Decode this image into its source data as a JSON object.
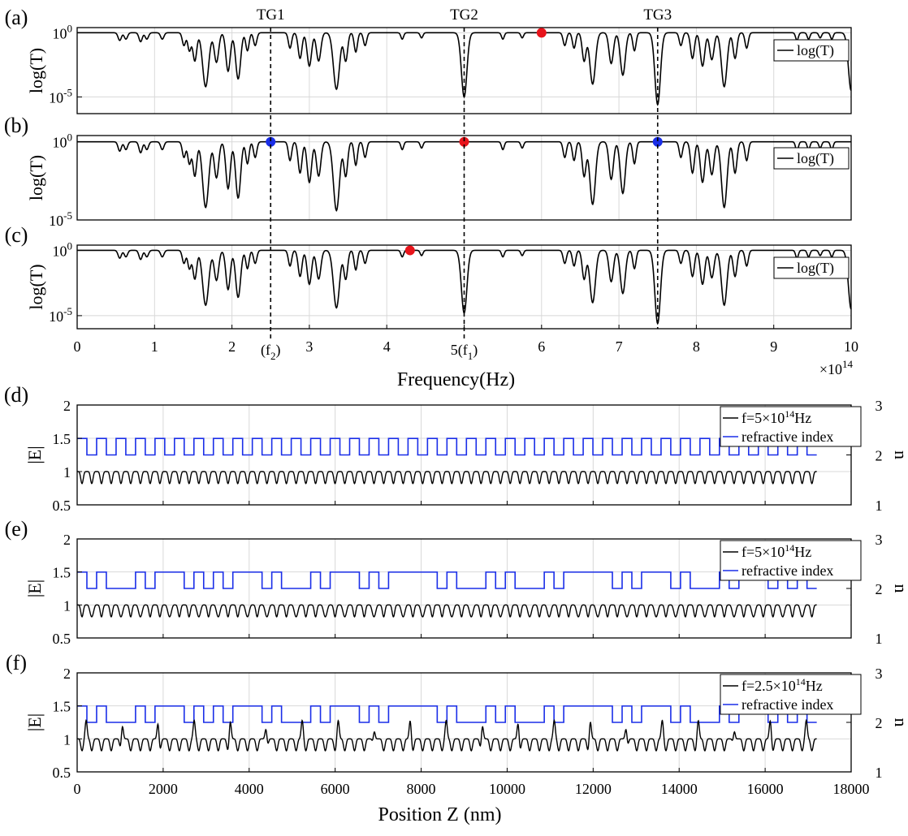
{
  "chart_data": [
    {
      "panel": "(a)",
      "type": "line",
      "yscale": "log",
      "xlim": [
        0,
        10
      ],
      "ylim_exponent": [
        -6.3,
        0.4
      ],
      "ytick_labels": [
        {
          "base": "10",
          "exp": "0",
          "value": 0
        },
        {
          "base": "10",
          "exp": "-5",
          "value": -5
        }
      ],
      "ylabel": "log(T)",
      "legend": [
        "log(T)"
      ],
      "legend_position": "right",
      "grid": true,
      "transmission_gaps": [
        {
          "label": "TG1",
          "x": 2.5
        },
        {
          "label": "TG2",
          "x": 5.0
        },
        {
          "label": "TG3",
          "x": 7.5
        }
      ],
      "deep_dips": [
        {
          "x": 5.0,
          "log_min": -5.0
        },
        {
          "x": 7.5,
          "log_min": -5.6
        },
        {
          "x": 10.0,
          "log_min": -4.5
        }
      ],
      "markers": [
        {
          "x": 6.0,
          "log": 0,
          "color": "#e8141b"
        }
      ]
    },
    {
      "panel": "(b)",
      "type": "line",
      "yscale": "log",
      "xlim": [
        0,
        10
      ],
      "ylim_exponent": [
        -5.0,
        0.4
      ],
      "ytick_labels": [
        {
          "base": "10",
          "exp": "0",
          "value": 0
        },
        {
          "base": "10",
          "exp": "-5",
          "value": -5
        }
      ],
      "ylabel": "log(T)",
      "legend": [
        "log(T)"
      ],
      "legend_position": "right",
      "grid": true,
      "markers": [
        {
          "x": 2.5,
          "log": 0,
          "color": "#1a2ee8"
        },
        {
          "x": 5.0,
          "log": 0,
          "color": "#e8141b"
        },
        {
          "x": 7.5,
          "log": 0,
          "color": "#1a2ee8"
        }
      ]
    },
    {
      "panel": "(c)",
      "type": "line",
      "yscale": "log",
      "xlim": [
        0,
        10
      ],
      "ylim_exponent": [
        -6.0,
        0.4
      ],
      "ytick_labels": [
        {
          "base": "10",
          "exp": "0",
          "value": 0
        },
        {
          "base": "10",
          "exp": "-5",
          "value": -5
        }
      ],
      "ylabel": "log(T)",
      "legend": [
        "log(T)"
      ],
      "legend_position": "right",
      "grid": true,
      "deep_dips": [
        {
          "x": 5.0,
          "log_min": -4.8
        },
        {
          "x": 7.5,
          "log_min": -5.6
        },
        {
          "x": 10.0,
          "log_min": -4.5
        }
      ],
      "markers": [
        {
          "x": 4.3,
          "log": 0,
          "color": "#e8141b"
        }
      ],
      "xticks": [
        0,
        1,
        2,
        3,
        4,
        5,
        6,
        7,
        8,
        9,
        10
      ],
      "xtick_labels": [
        "0",
        "1",
        "2",
        "3",
        "4",
        "5",
        "6",
        "7",
        "8",
        "9",
        "10"
      ],
      "freq_annotations": [
        {
          "x": 2.5,
          "prefix": "(f",
          "sub": "2",
          "suffix": ")"
        },
        {
          "x": 5.0,
          "prefix": "5(f",
          "sub": "1",
          "suffix": ")"
        }
      ],
      "xlabel": "Frequency(Hz)",
      "x_multiplier": {
        "prefix": "×10",
        "exp": "14"
      }
    },
    {
      "panel": "(d)",
      "type": "line",
      "xlim": [
        0,
        18000
      ],
      "ylim": [
        0.5,
        2
      ],
      "yticks": [
        0.5,
        1,
        1.5,
        2
      ],
      "ytick_labels": [
        "0.5",
        "1",
        "1.5",
        "2"
      ],
      "y2lim": [
        1,
        3
      ],
      "y2ticks": [
        1,
        2,
        3
      ],
      "y2tick_labels": [
        "1",
        "2",
        "3"
      ],
      "ylabel": "|E|",
      "y2label": "n",
      "structure_end_nm": 17200,
      "layer_count": 76,
      "n_high": 2.33,
      "n_low": 2.0,
      "field_high": 1.0,
      "field_low": 0.82,
      "legend": [
        {
          "pre": "f=5×10",
          "sup": "14",
          "post": "Hz",
          "color": "#000000"
        },
        {
          "label": "refractive index",
          "color": "#1a2ee8"
        }
      ],
      "legend_position": "right",
      "grid": true
    },
    {
      "panel": "(e)",
      "type": "line",
      "xlim": [
        0,
        18000
      ],
      "ylim": [
        0.5,
        2
      ],
      "yticks": [
        0.5,
        1,
        1.5,
        2
      ],
      "ytick_labels": [
        "0.5",
        "1",
        "1.5",
        "2"
      ],
      "y2lim": [
        1,
        3
      ],
      "y2ticks": [
        1,
        2,
        3
      ],
      "y2tick_labels": [
        "1",
        "2",
        "3"
      ],
      "ylabel": "|E|",
      "y2label": "n",
      "structure_end_nm": 17200,
      "layer_count": 76,
      "n_high": 2.33,
      "n_low": 2.0,
      "field_high": 1.0,
      "field_low": 0.82,
      "legend": [
        {
          "pre": "f=5×10",
          "sup": "14",
          "post": "Hz",
          "color": "#000000"
        },
        {
          "label": "refractive index",
          "color": "#1a2ee8"
        }
      ],
      "legend_position": "right",
      "grid": true
    },
    {
      "panel": "(f)",
      "type": "line",
      "xlim": [
        0,
        18000
      ],
      "ylim": [
        0.5,
        2
      ],
      "yticks": [
        0.5,
        1,
        1.5,
        2
      ],
      "ytick_labels": [
        "0.5",
        "1",
        "1.5",
        "2"
      ],
      "y2lim": [
        1,
        3
      ],
      "y2ticks": [
        1,
        2,
        3
      ],
      "y2tick_labels": [
        "1",
        "2",
        "3"
      ],
      "ylabel": "|E|",
      "y2label": "n",
      "structure_end_nm": 17200,
      "layer_count": 76,
      "n_high": 2.33,
      "n_low": 2.0,
      "field_high": 1.0,
      "field_low": 0.82,
      "field_peak": 1.28,
      "legend": [
        {
          "pre": "f=2.5×10",
          "sup": "14",
          "post": "Hz",
          "color": "#000000"
        },
        {
          "label": "refractive index",
          "color": "#1a2ee8"
        }
      ],
      "legend_position": "right",
      "grid": true,
      "xticks": [
        0,
        2000,
        4000,
        6000,
        8000,
        10000,
        12000,
        14000,
        16000,
        18000
      ],
      "xtick_labels": [
        "0",
        "2000",
        "4000",
        "6000",
        "8000",
        "10000",
        "12000",
        "14000",
        "16000",
        "18000"
      ],
      "xlabel": "Position Z (nm)"
    }
  ]
}
